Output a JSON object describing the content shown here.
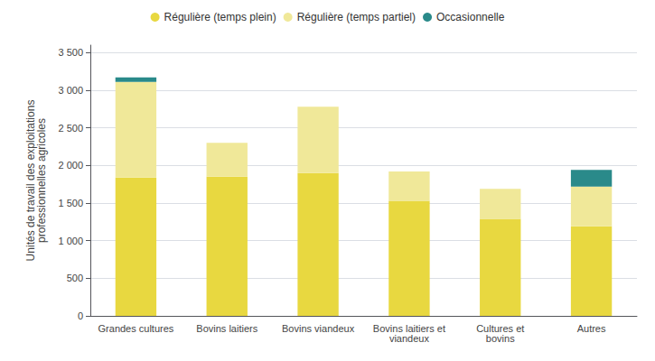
{
  "chart_data": {
    "type": "bar",
    "stacked": true,
    "categories": [
      "Grandes cultures",
      "Bovins laitiers",
      "Bovins viandeux",
      "Bovins laitiers et\nviandeux",
      "Cultures et\nbovins",
      "Autres"
    ],
    "series": [
      {
        "name": "Régulière (temps plein)",
        "color": "#e8d840",
        "values": [
          1840,
          1850,
          1900,
          1530,
          1290,
          1190
        ]
      },
      {
        "name": "Régulière (temps partiel)",
        "color": "#f0e899",
        "values": [
          1270,
          450,
          880,
          390,
          400,
          530
        ]
      },
      {
        "name": "Occasionnelle",
        "color": "#2a8a8a",
        "values": [
          60,
          0,
          0,
          0,
          0,
          220
        ]
      }
    ],
    "ylabel": "Unités de travail des exploitations\nprofessionnelles agricoles",
    "ylim": [
      0,
      3600
    ],
    "yticks": [
      0,
      500,
      {
        "value": 1000,
        "label": "1 000"
      },
      {
        "value": 1500,
        "label": "1 500"
      },
      {
        "value": 2000,
        "label": "2 000"
      },
      {
        "value": 2500,
        "label": "2 500"
      },
      {
        "value": 3000,
        "label": "3 000"
      },
      {
        "value": 3500,
        "label": "3 500"
      }
    ],
    "grid": true,
    "legend": "top"
  }
}
